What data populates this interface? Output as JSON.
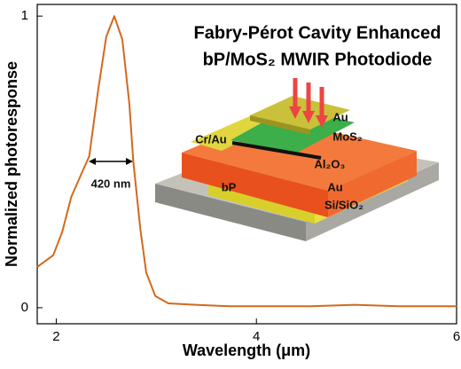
{
  "chart_data": {
    "type": "line",
    "title": "Fabry-Pérot Cavity Enhanced",
    "subtitle": "bP/MoS₂ MWIR Photodiode",
    "x_label": "Wavelength (μm)",
    "y_label": "Normalized photoresponse",
    "x": [
      1.81,
      1.97,
      2.06,
      2.15,
      2.24,
      2.33,
      2.42,
      2.5,
      2.58,
      2.66,
      2.73,
      2.77,
      2.84,
      2.9,
      2.99,
      3.12,
      3.39,
      3.74,
      4.1,
      4.54,
      4.98,
      5.42,
      6
    ],
    "values": [
      0.14,
      0.18,
      0.26,
      0.38,
      0.45,
      0.52,
      0.75,
      0.93,
      1.0,
      0.92,
      0.7,
      0.5,
      0.27,
      0.12,
      0.04,
      0.015,
      0.01,
      0.005,
      0.005,
      0.005,
      0.01,
      0.005,
      0.005
    ],
    "color": "#d2691e",
    "xlim": [
      1.81,
      6
    ],
    "xticks": [
      2,
      4,
      6
    ],
    "ylim": [
      -0.055,
      1.04
    ],
    "yticks": [
      0,
      1
    ],
    "annotations": [
      "420 nm",
      "Au",
      "MoS₂",
      "Cr/Au",
      "Al₂O₃",
      "bP",
      "Au",
      "Si/SiO₂"
    ]
  }
}
